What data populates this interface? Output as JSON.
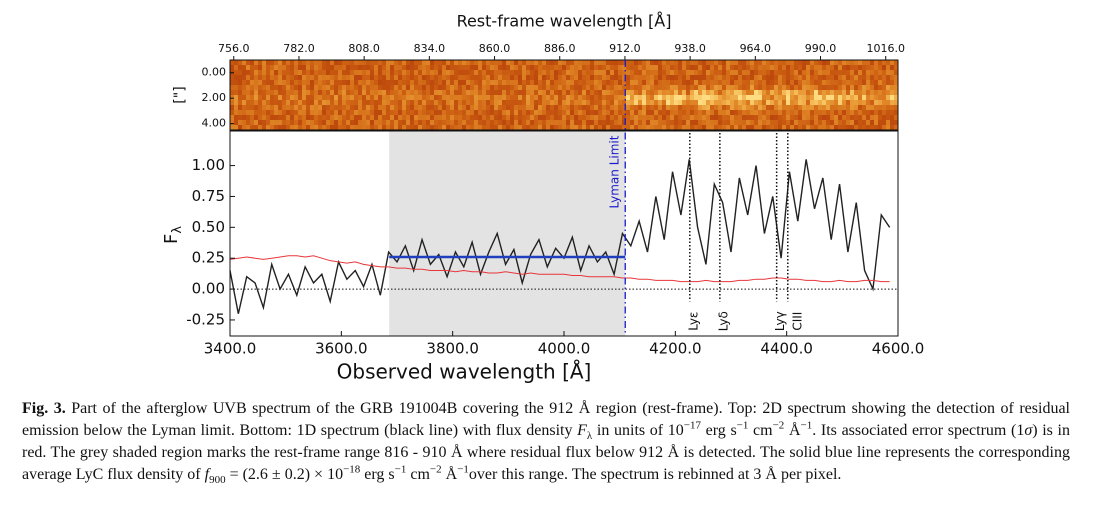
{
  "chart_data": [
    {
      "type": "image",
      "title": "Rest-frame wavelength [Å]",
      "ylabel": "[\"]",
      "xlim": [
        754.5,
        1020.9
      ],
      "xticks": [
        {
          "value": 756,
          "label": "756.0"
        },
        {
          "value": 782,
          "label": "782.0"
        },
        {
          "value": 808,
          "label": "808.0"
        },
        {
          "value": 834,
          "label": "834.0"
        },
        {
          "value": 860,
          "label": "860.0"
        },
        {
          "value": 886,
          "label": "886.0"
        },
        {
          "value": 912,
          "label": "912.0"
        },
        {
          "value": 938,
          "label": "938.0"
        },
        {
          "value": 964,
          "label": "964.0"
        },
        {
          "value": 990,
          "label": "990.0"
        },
        {
          "value": 1016,
          "label": "1016.0"
        }
      ],
      "ylim": [
        -1.0,
        4.5
      ],
      "yticks": [
        {
          "value": 0,
          "label": "0.00"
        },
        {
          "value": 2,
          "label": "2.00"
        },
        {
          "value": 4,
          "label": "4.00"
        }
      ]
    },
    {
      "type": "line",
      "xlabel": "Observed wavelength [Å]",
      "ylabel": "F",
      "ylabel_sub": "λ",
      "xlim": [
        3400,
        4600
      ],
      "ylim": [
        -0.38,
        1.28
      ],
      "xticks": [
        {
          "value": 3400,
          "label": "3400.0"
        },
        {
          "value": 3600,
          "label": "3600.0"
        },
        {
          "value": 3800,
          "label": "3800.0"
        },
        {
          "value": 4000,
          "label": "4000.0"
        },
        {
          "value": 4200,
          "label": "4200.0"
        },
        {
          "value": 4400,
          "label": "4400.0"
        },
        {
          "value": 4600,
          "label": "4600.0"
        }
      ],
      "yticks": [
        {
          "value": 1,
          "label": "1.00"
        },
        {
          "value": 0.75,
          "label": "0.75"
        },
        {
          "value": 0.5,
          "label": "0.50"
        },
        {
          "value": 0.25,
          "label": "0.25"
        },
        {
          "value": 0,
          "label": "0.00"
        },
        {
          "value": -0.25,
          "label": "-0.25"
        }
      ],
      "x": [
        3400,
        3415,
        3430,
        3445,
        3460,
        3475,
        3490,
        3505,
        3520,
        3535,
        3550,
        3565,
        3580,
        3595,
        3610,
        3625,
        3640,
        3655,
        3670,
        3685,
        3700,
        3715,
        3730,
        3745,
        3760,
        3775,
        3790,
        3805,
        3820,
        3835,
        3850,
        3865,
        3880,
        3895,
        3910,
        3925,
        3940,
        3955,
        3970,
        3985,
        4000,
        4015,
        4030,
        4045,
        4060,
        4075,
        4090,
        4105,
        4120,
        4135,
        4150,
        4165,
        4180,
        4195,
        4210,
        4225,
        4240,
        4255,
        4270,
        4285,
        4300,
        4315,
        4330,
        4345,
        4360,
        4375,
        4390,
        4405,
        4420,
        4435,
        4450,
        4465,
        4480,
        4495,
        4510,
        4525,
        4540,
        4555,
        4570,
        4585
      ],
      "series": [
        {
          "color": "#222222",
          "values": [
            0.15,
            -0.2,
            0.1,
            0.05,
            -0.15,
            0.2,
            0.0,
            0.12,
            -0.05,
            0.18,
            0.05,
            0.12,
            -0.1,
            0.22,
            0.08,
            0.15,
            0.02,
            0.2,
            -0.05,
            0.3,
            0.22,
            0.35,
            0.15,
            0.4,
            0.2,
            0.28,
            0.1,
            0.3,
            0.18,
            0.38,
            0.12,
            0.3,
            0.45,
            0.2,
            0.32,
            0.05,
            0.28,
            0.4,
            0.18,
            0.33,
            0.25,
            0.42,
            0.15,
            0.35,
            0.22,
            0.3,
            0.12,
            0.45,
            0.35,
            0.55,
            0.3,
            0.75,
            0.4,
            0.95,
            0.6,
            1.05,
            0.5,
            0.2,
            0.85,
            0.7,
            0.3,
            0.9,
            0.6,
            1.0,
            0.45,
            0.75,
            0.25,
            0.95,
            0.55,
            1.05,
            0.65,
            0.9,
            0.4,
            0.85,
            0.3,
            0.7,
            0.15,
            0.0,
            0.6,
            0.5
          ]
        },
        {
          "color": "#e8353a",
          "values": [
            0.24,
            0.25,
            0.26,
            0.25,
            0.24,
            0.25,
            0.26,
            0.27,
            0.27,
            0.26,
            0.27,
            0.25,
            0.23,
            0.22,
            0.21,
            0.22,
            0.2,
            0.19,
            0.18,
            0.18,
            0.17,
            0.17,
            0.16,
            0.16,
            0.15,
            0.15,
            0.15,
            0.14,
            0.15,
            0.14,
            0.14,
            0.13,
            0.13,
            0.14,
            0.13,
            0.12,
            0.13,
            0.12,
            0.12,
            0.12,
            0.12,
            0.11,
            0.11,
            0.1,
            0.1,
            0.1,
            0.1,
            0.09,
            0.09,
            0.08,
            0.08,
            0.07,
            0.07,
            0.07,
            0.06,
            0.06,
            0.06,
            0.07,
            0.06,
            0.06,
            0.06,
            0.07,
            0.07,
            0.08,
            0.08,
            0.09,
            0.09,
            0.08,
            0.08,
            0.07,
            0.07,
            0.06,
            0.06,
            0.07,
            0.06,
            0.06,
            0.07,
            0.07,
            0.06,
            0.06
          ]
        }
      ],
      "zero_line": 0,
      "shaded_region": [
        3686,
        4110
      ],
      "shade_color": "#e3e3e3",
      "average": {
        "value": 0.26,
        "range": [
          3686,
          4110
        ],
        "color": "#1f3fbf"
      },
      "lyman_limit": {
        "x": 4110,
        "label": "Lyman Limit",
        "color": "#1a1acc"
      },
      "lines": [
        {
          "label": "Lyε",
          "x": 4226
        },
        {
          "label": "Lyδ",
          "x": 4280
        },
        {
          "label": "Lyγ",
          "x": 4382
        },
        {
          "label": "CIII",
          "x": 4402
        }
      ]
    }
  ],
  "caption": [
    "Fig. 3.",
    " Part of the afterglow UVB spectrum of the GRB 191004B covering the 912 Å region (rest-frame). Top: 2D spectrum showing the detection of residual emission below the Lyman limit. Bottom: 1D spectrum (black line) with flux density ",
    "F",
    "λ",
    " in units of 10",
    "−17",
    " erg s",
    "−1",
    " cm",
    "−2",
    " Å",
    "−1",
    ". Its associated error spectrum (1",
    "σ",
    ") is in red. The grey shaded region marks the rest-frame range 816 - 910 Å where residual flux below 912 Å is detected. The solid blue line represents the corresponding average LyC flux density of ",
    "f",
    "900",
    " = (2.6 ± 0.2) × 10",
    "−18",
    " erg s",
    "−1",
    " cm",
    "−2",
    " Å",
    "−1",
    "over this range. The spectrum is rebinned at 3 Å per pixel."
  ]
}
